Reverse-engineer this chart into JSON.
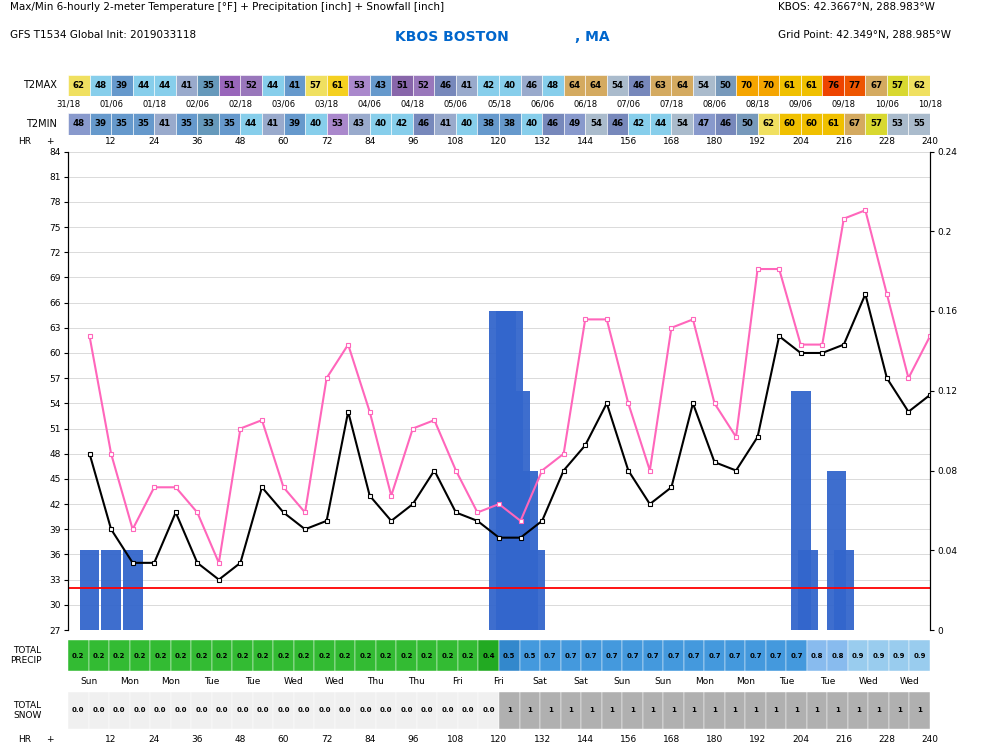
{
  "title_main": "Max/Min 6-hourly 2-meter Temperature [°F] + Precipitation [inch] + Snowfall [inch]",
  "title_sub": "GFS T1534 Global Init: 2019033118",
  "station_name": "KBOS BOSTON",
  "station_state": ", MA",
  "kbos_coords": "KBOS: 42.3667°N, 288.983°W",
  "grid_coords": "Grid Point: 42.349°N, 288.985°W",
  "t2max_values": [
    62,
    48,
    39,
    44,
    44,
    41,
    35,
    51,
    52,
    44,
    41,
    57,
    61,
    53,
    43,
    51,
    52,
    46,
    41,
    42,
    40,
    46,
    48,
    64,
    64,
    54,
    46,
    63,
    64,
    54,
    50,
    70,
    70,
    61,
    61,
    76,
    77,
    67,
    57,
    62
  ],
  "t2min_values": [
    48,
    39,
    35,
    35,
    41,
    35,
    33,
    35,
    44,
    41,
    39,
    40,
    53,
    43,
    40,
    42,
    46,
    41,
    40,
    38,
    38,
    40,
    46,
    49,
    54,
    46,
    42,
    44,
    54,
    47,
    46,
    50,
    62,
    60,
    60,
    61,
    67,
    57,
    53,
    55
  ],
  "t2max_colors": [
    "#f0e060",
    "#87ceeb",
    "#6699cc",
    "#87ceeb",
    "#87ceeb",
    "#99aacc",
    "#6699bb",
    "#9966bb",
    "#9977bb",
    "#87ceeb",
    "#6699cc",
    "#f0e060",
    "#f5d020",
    "#aa88cc",
    "#6699cc",
    "#8866aa",
    "#9977bb",
    "#7788bb",
    "#99aacc",
    "#87ceeb",
    "#87ceeb",
    "#99aacc",
    "#87ceeb",
    "#d4aa60",
    "#d4aa60",
    "#aabbcc",
    "#7788bb",
    "#d4aa60",
    "#d4aa60",
    "#aabbcc",
    "#7799bb",
    "#f5a500",
    "#f5a500",
    "#f0c000",
    "#f0c000",
    "#ee4400",
    "#ee5500",
    "#d4aa60",
    "#d8d830",
    "#f0e060"
  ],
  "t2min_colors": [
    "#8899cc",
    "#6699cc",
    "#6699cc",
    "#6699cc",
    "#99aacc",
    "#6699cc",
    "#6699bb",
    "#6699cc",
    "#87ceeb",
    "#99aacc",
    "#6699cc",
    "#87ceeb",
    "#aa88cc",
    "#99aacc",
    "#87ceeb",
    "#87ceeb",
    "#7788bb",
    "#99aacc",
    "#87ceeb",
    "#6699cc",
    "#6699cc",
    "#87ceeb",
    "#7788bb",
    "#8899cc",
    "#aabbcc",
    "#7788bb",
    "#87ceeb",
    "#87ceeb",
    "#aabbcc",
    "#8899cc",
    "#7788bb",
    "#7799bb",
    "#f0e060",
    "#f0c000",
    "#f0c000",
    "#f0c000",
    "#d4aa60",
    "#d8d830",
    "#aabbcc",
    "#aabbcc"
  ],
  "date_positions": [
    0,
    12,
    24,
    36,
    48,
    60,
    72,
    84,
    96,
    108,
    120,
    132,
    144,
    156,
    168,
    180,
    192,
    204,
    216,
    228,
    240
  ],
  "date_labels_all": [
    "31/18",
    "01/06",
    "01/18",
    "02/06",
    "02/18",
    "03/06",
    "03/18",
    "04/06",
    "04/18",
    "05/06",
    "05/18",
    "06/06",
    "06/18",
    "07/06",
    "07/18",
    "08/06",
    "08/18",
    "09/06",
    "09/18",
    "10/06",
    "10/18"
  ],
  "tmax_line": [
    62,
    48,
    39,
    44,
    44,
    41,
    35,
    51,
    52,
    44,
    41,
    57,
    61,
    53,
    43,
    51,
    52,
    46,
    41,
    42,
    40,
    46,
    48,
    64,
    64,
    54,
    46,
    63,
    64,
    54,
    50,
    70,
    70,
    61,
    61,
    76,
    77,
    67,
    57,
    62
  ],
  "tmin_line": [
    48,
    39,
    35,
    35,
    41,
    35,
    33,
    35,
    44,
    41,
    39,
    40,
    53,
    43,
    40,
    42,
    46,
    41,
    40,
    38,
    38,
    40,
    46,
    49,
    54,
    46,
    42,
    44,
    54,
    47,
    46,
    50,
    62,
    60,
    60,
    61,
    67,
    57,
    53,
    55
  ],
  "precip_bars": [
    [
      6,
      0.04
    ],
    [
      12,
      0.04
    ],
    [
      18,
      0.04
    ],
    [
      120,
      0.16
    ],
    [
      122,
      0.16
    ],
    [
      124,
      0.16
    ],
    [
      126,
      0.12
    ],
    [
      128,
      0.08
    ],
    [
      130,
      0.04
    ],
    [
      204,
      0.12
    ],
    [
      206,
      0.04
    ],
    [
      214,
      0.08
    ],
    [
      216,
      0.04
    ]
  ],
  "freezing_line": 32,
  "ylim_main": [
    27,
    84
  ],
  "yticks_main": [
    27,
    30,
    33,
    36,
    39,
    42,
    45,
    48,
    51,
    54,
    57,
    60,
    63,
    66,
    69,
    72,
    75,
    78,
    81,
    84
  ],
  "precip_right_vals": [
    0,
    0.04,
    0.08,
    0.12,
    0.16,
    0.2,
    0.24
  ],
  "precip_right_labels": [
    "0",
    "0.04",
    "0.08",
    "0.12",
    "0.16",
    "0.2",
    "0.24"
  ],
  "precip_row_values": [
    "0.2",
    "0.2",
    "0.2",
    "0.2",
    "0.2",
    "0.2",
    "0.2",
    "0.2",
    "0.2",
    "0.2",
    "0.2",
    "0.2",
    "0.2",
    "0.2",
    "0.2",
    "0.2",
    "0.2",
    "0.2",
    "0.2",
    "0.2",
    "0.4",
    "0.5",
    "0.5",
    "0.7",
    "0.7",
    "0.7",
    "0.7",
    "0.7",
    "0.7",
    "0.7",
    "0.7",
    "0.7",
    "0.7",
    "0.7",
    "0.7",
    "0.7",
    "0.8",
    "0.8",
    "0.9",
    "0.9",
    "0.9",
    "0.9"
  ],
  "precip_row_colors": [
    "#33bb33",
    "#33bb33",
    "#33bb33",
    "#33bb33",
    "#33bb33",
    "#33bb33",
    "#33bb33",
    "#33bb33",
    "#33bb33",
    "#33bb33",
    "#33bb33",
    "#33bb33",
    "#33bb33",
    "#33bb33",
    "#33bb33",
    "#33bb33",
    "#33bb33",
    "#33bb33",
    "#33bb33",
    "#33bb33",
    "#22aa22",
    "#3388cc",
    "#4499dd",
    "#4499dd",
    "#4499dd",
    "#4499dd",
    "#4499dd",
    "#4499dd",
    "#4499dd",
    "#4499dd",
    "#4499dd",
    "#4499dd",
    "#4499dd",
    "#4499dd",
    "#4499dd",
    "#4499dd",
    "#88bbee",
    "#88bbee",
    "#99ccee",
    "#99ccee",
    "#99ccee",
    "#99ccee"
  ],
  "snow_cutoff": 21,
  "day_labels": [
    "Sun",
    "Mon",
    "Mon",
    "Tue",
    "Tue",
    "Wed",
    "Wed",
    "Thu",
    "Thu",
    "Fri",
    "Fri",
    "Sat",
    "Sat",
    "Sun",
    "Sun",
    "Mon",
    "Mon",
    "Tue",
    "Tue",
    "Wed",
    "Wed"
  ],
  "hr_ticks": [
    12,
    24,
    36,
    48,
    60,
    72,
    84,
    96,
    108,
    120,
    132,
    144,
    156,
    168,
    180,
    192,
    204,
    216,
    228,
    240
  ],
  "background_color": "#ffffff",
  "pink_color": "#ff66bb",
  "bar_color": "#3366cc"
}
